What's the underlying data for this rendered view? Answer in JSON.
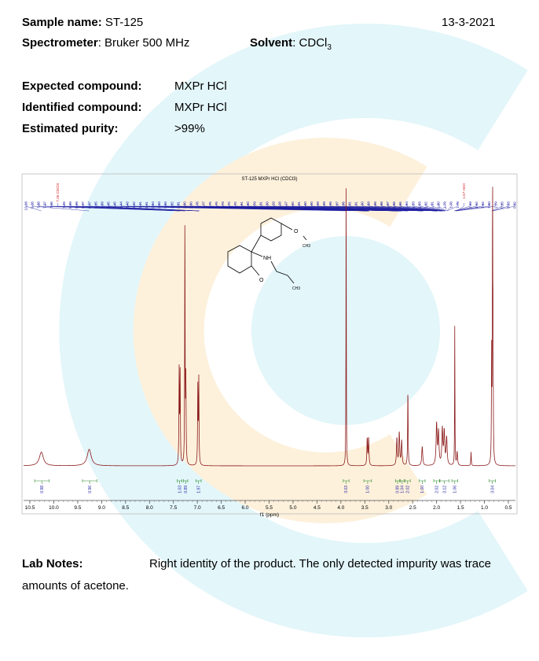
{
  "header": {
    "sample_label": "Sample name:",
    "sample_value": "ST-125",
    "date": "13-3-2021",
    "spectrometer_label": "Spectrometer",
    "spectrometer_value": ": Bruker 500 MHz",
    "solvent_label": "Solvent",
    "solvent_value": ": CDCl",
    "solvent_sub": "3"
  },
  "summary": {
    "expected_label": "Expected compound:",
    "expected_value": "MXPr HCl",
    "identified_label": "Identified compound:",
    "identified_value": "MXPr HCl",
    "purity_label": "Estimated purity:",
    "purity_value": ">99%"
  },
  "notes": {
    "label": "Lab Notes:",
    "line1": "Right identity of the product. The only detected impurity was trace",
    "line2": "amounts of acetone."
  },
  "colors": {
    "spectrum": "#8b1a1a",
    "peak_label": "#1a1aa0",
    "solvent_label": "#d02020",
    "integral": "#2e8b2e",
    "watermark_cyan": "#e3f6fa",
    "watermark_orange": "#fdf1dc"
  },
  "chart_data": {
    "type": "line",
    "title": "ST-125 MXPr HCl (CDCl3)",
    "xlabel": "f1 (ppm)",
    "xlim": [
      10.5,
      0.5
    ],
    "x_ticks": [
      "10.5",
      "10.0",
      "9.5",
      "9.0",
      "8.5",
      "8.0",
      "7.5",
      "7.0",
      "6.5",
      "6.0",
      "5.5",
      "5.0",
      "4.5",
      "4.0",
      "3.5",
      "3.0",
      "2.5",
      "2.0",
      "1.5",
      "1.0",
      "0.5"
    ],
    "structure_labels": [
      "O",
      "CH3",
      "NH",
      "O",
      "CH3"
    ],
    "peak_labels": [
      "10.26",
      "9.26",
      "7.38",
      "7.37",
      "7.35",
      "7.26 CDCl3",
      "7.25",
      "6.99",
      "6.98",
      "6.97",
      "6.97",
      "6.95",
      "3.89",
      "3.45",
      "3.45",
      "3.44",
      "3.43",
      "3.42",
      "3.41",
      "3.41",
      "2.84",
      "2.83",
      "2.83",
      "2.82",
      "2.81",
      "2.80",
      "2.80",
      "2.78",
      "2.77",
      "2.75",
      "2.75",
      "2.73",
      "2.72",
      "2.72",
      "2.61",
      "2.60",
      "2.59",
      "2.31",
      "2.30",
      "2.29",
      "2.28",
      "2.27",
      "2.02",
      "2.01",
      "2.00",
      "2.00",
      "1.99",
      "1.99",
      "1.98",
      "1.97",
      "1.96",
      "1.91",
      "1.91",
      "1.90",
      "1.89",
      "1.88",
      "1.88",
      "1.87",
      "1.86",
      "1.85",
      "1.84",
      "1.83",
      "1.83",
      "1.82",
      "1.81",
      "1.80",
      "1.79",
      "1.78",
      "1.78",
      "1.57 H2O",
      "1.63",
      "1.62",
      "1.62",
      "1.60",
      "1.59",
      "0.85",
      "0.83",
      "0.82"
    ],
    "peaks": [
      {
        "ppm": 10.26,
        "intensity": 0.05,
        "width": 0.05
      },
      {
        "ppm": 9.26,
        "intensity": 0.06,
        "width": 0.05
      },
      {
        "ppm": 7.38,
        "intensity": 0.34,
        "width": 0.006
      },
      {
        "ppm": 7.36,
        "intensity": 0.33,
        "width": 0.006
      },
      {
        "ppm": 7.26,
        "intensity": 0.89,
        "width": 0.005
      },
      {
        "ppm": 7.24,
        "intensity": 0.3,
        "width": 0.006
      },
      {
        "ppm": 6.99,
        "intensity": 0.28,
        "width": 0.006
      },
      {
        "ppm": 6.97,
        "intensity": 0.31,
        "width": 0.006
      },
      {
        "ppm": 3.89,
        "intensity": 1.05,
        "width": 0.004
      },
      {
        "ppm": 3.45,
        "intensity": 0.1,
        "width": 0.008
      },
      {
        "ppm": 3.42,
        "intensity": 0.1,
        "width": 0.008
      },
      {
        "ppm": 2.83,
        "intensity": 0.1,
        "width": 0.01
      },
      {
        "ppm": 2.78,
        "intensity": 0.12,
        "width": 0.01
      },
      {
        "ppm": 2.73,
        "intensity": 0.09,
        "width": 0.01
      },
      {
        "ppm": 2.6,
        "intensity": 0.28,
        "width": 0.006
      },
      {
        "ppm": 2.3,
        "intensity": 0.07,
        "width": 0.012
      },
      {
        "ppm": 2.0,
        "intensity": 0.15,
        "width": 0.012
      },
      {
        "ppm": 1.96,
        "intensity": 0.12,
        "width": 0.012
      },
      {
        "ppm": 1.88,
        "intensity": 0.13,
        "width": 0.012
      },
      {
        "ppm": 1.84,
        "intensity": 0.12,
        "width": 0.012
      },
      {
        "ppm": 1.79,
        "intensity": 0.1,
        "width": 0.012
      },
      {
        "ppm": 1.62,
        "intensity": 0.52,
        "width": 0.004
      },
      {
        "ppm": 1.57,
        "intensity": 0.05,
        "width": 0.01
      },
      {
        "ppm": 1.28,
        "intensity": 0.05,
        "width": 0.006
      },
      {
        "ppm": 0.85,
        "intensity": 0.4,
        "width": 0.005
      },
      {
        "ppm": 0.83,
        "intensity": 0.98,
        "width": 0.005
      },
      {
        "ppm": 0.82,
        "intensity": 0.4,
        "width": 0.005
      }
    ],
    "integrals": [
      {
        "from": 10.4,
        "to": 10.1,
        "value": "0.98"
      },
      {
        "from": 9.4,
        "to": 9.1,
        "value": "0.96"
      },
      {
        "from": 7.42,
        "to": 7.32,
        "value": "1.03"
      },
      {
        "from": 7.29,
        "to": 7.2,
        "value": "0.89"
      },
      {
        "from": 7.03,
        "to": 6.92,
        "value": "1.97"
      },
      {
        "from": 3.95,
        "to": 3.83,
        "value": "3.03"
      },
      {
        "from": 3.52,
        "to": 3.36,
        "value": "1.00"
      },
      {
        "from": 2.86,
        "to": 2.77,
        "value": "0.99"
      },
      {
        "from": 2.76,
        "to": 2.68,
        "value": "1.04"
      },
      {
        "from": 2.66,
        "to": 2.55,
        "value": "2.02"
      },
      {
        "from": 2.36,
        "to": 2.24,
        "value": "1.00"
      },
      {
        "from": 2.06,
        "to": 1.94,
        "value": "2.02"
      },
      {
        "from": 1.93,
        "to": 1.74,
        "value": "3.12"
      },
      {
        "from": 1.68,
        "to": 1.56,
        "value": "1.06"
      },
      {
        "from": 0.9,
        "to": 0.77,
        "value": "3.04"
      }
    ]
  }
}
